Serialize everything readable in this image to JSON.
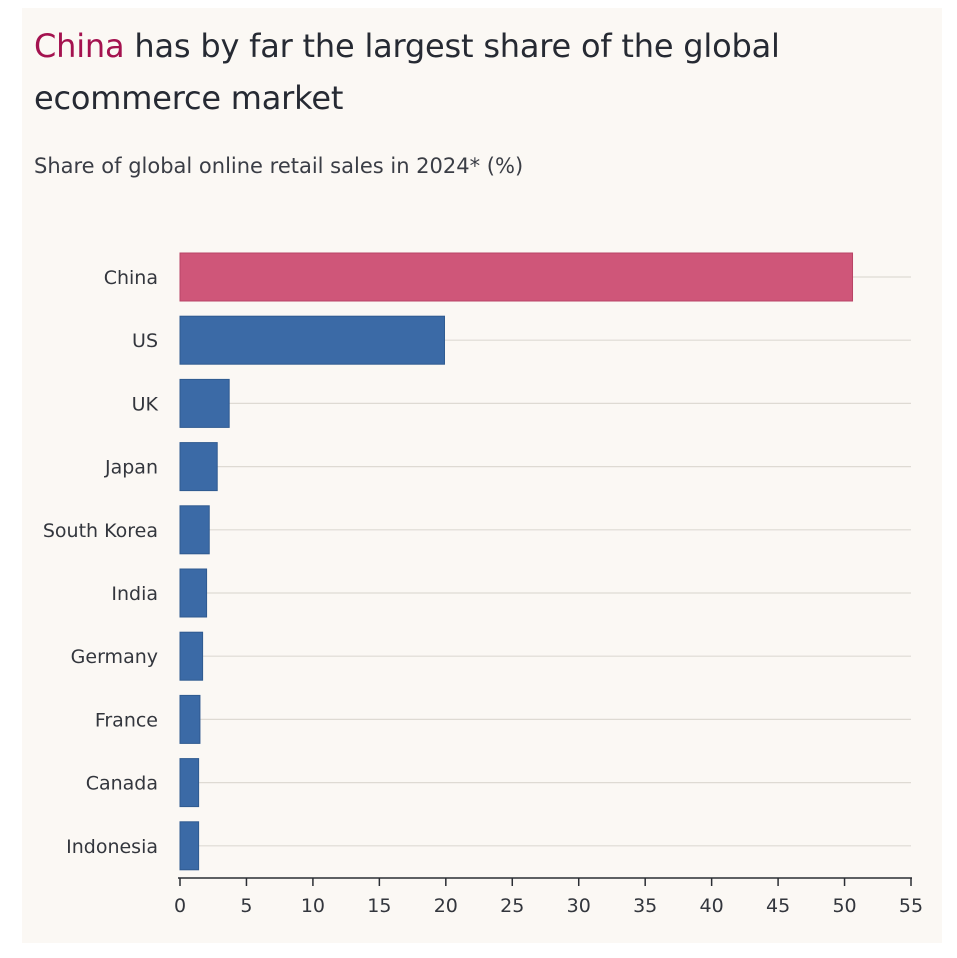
{
  "title": {
    "highlight": "China",
    "rest": " has by far the largest share of the global ecommerce market"
  },
  "subtitle": "Share of global online retail sales in 2024* (%)",
  "colors": {
    "highlight": "#cf5679",
    "bar": "#3b6aa6",
    "title_highlight": "#a4124f"
  },
  "chart_data": {
    "type": "bar",
    "orientation": "horizontal",
    "categories": [
      "China",
      "US",
      "UK",
      "Japan",
      "South Korea",
      "India",
      "Germany",
      "France",
      "Canada",
      "Indonesia"
    ],
    "values": [
      50.6,
      19.9,
      3.7,
      2.8,
      2.2,
      2.0,
      1.7,
      1.5,
      1.4,
      1.4
    ],
    "highlight_category": "China",
    "xlim": [
      0,
      55
    ],
    "xticks": [
      0,
      5,
      10,
      15,
      20,
      25,
      30,
      35,
      40,
      45,
      50,
      55
    ],
    "grid": true,
    "title": "China has by far the largest share of the global ecommerce market",
    "subtitle": "Share of global online retail sales in 2024* (%)",
    "xlabel": "",
    "ylabel": ""
  }
}
